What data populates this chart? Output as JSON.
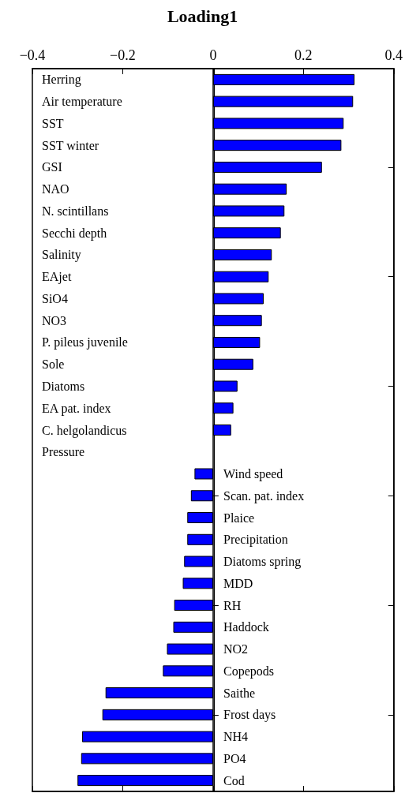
{
  "chart_data": {
    "type": "bar",
    "orientation": "horizontal",
    "title": "Loading1",
    "categories": [
      "Herring",
      "Air temperature",
      "SST",
      "SST winter",
      "GSI",
      "NAO",
      "N. scintillans",
      "Secchi depth",
      "Salinity",
      "EAjet",
      "SiO4",
      "NO3",
      "P. pileus juvenile",
      "Sole",
      "Diatoms",
      "EA pat. index",
      "C. helgolandicus",
      "Pressure",
      "Wind speed",
      "Scan. pat. index",
      "Plaice",
      "Precipitation",
      "Diatoms spring",
      "MDD",
      "RH",
      "Haddock",
      "NO2",
      "Copepods",
      "Saithe",
      "Frost days",
      "NH4",
      "PO4",
      "Cod"
    ],
    "values": [
      0.313,
      0.31,
      0.289,
      0.284,
      0.241,
      0.163,
      0.158,
      0.15,
      0.13,
      0.123,
      0.112,
      0.108,
      0.104,
      0.089,
      0.054,
      0.045,
      0.04,
      0,
      -0.041,
      -0.049,
      -0.057,
      -0.057,
      -0.064,
      -0.067,
      -0.086,
      -0.088,
      -0.102,
      -0.111,
      -0.238,
      -0.245,
      -0.29,
      -0.292,
      -0.3
    ],
    "color": "#0000ff",
    "xlim": [
      -0.4,
      0.4
    ],
    "xticks": [
      -0.4,
      -0.2,
      0,
      0.2,
      0.4
    ],
    "grid": false
  }
}
